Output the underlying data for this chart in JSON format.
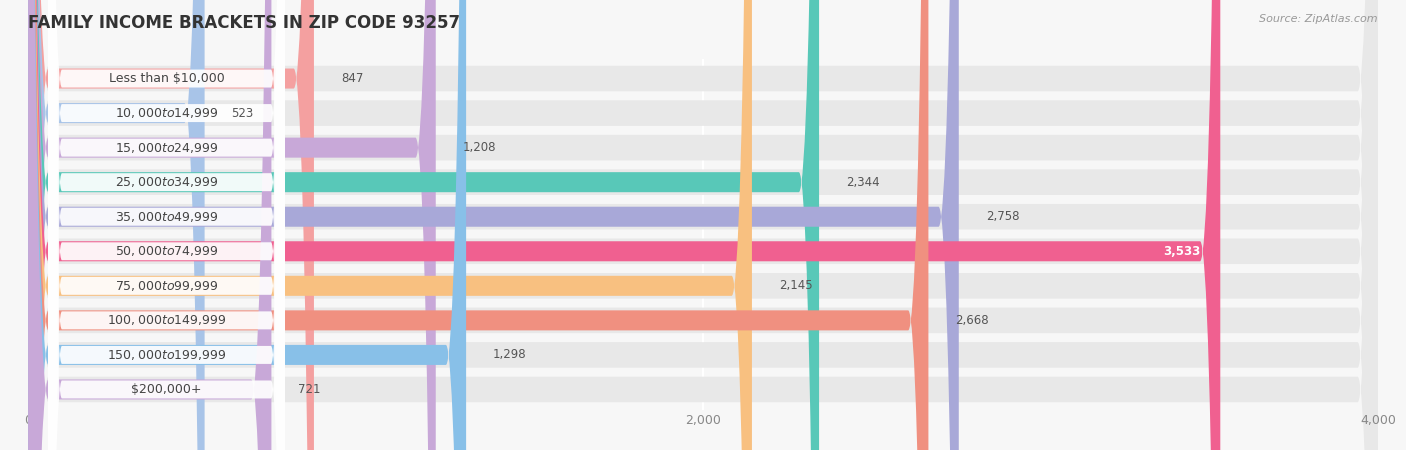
{
  "title": "FAMILY INCOME BRACKETS IN ZIP CODE 93257",
  "source": "Source: ZipAtlas.com",
  "categories": [
    "Less than $10,000",
    "$10,000 to $14,999",
    "$15,000 to $24,999",
    "$25,000 to $34,999",
    "$35,000 to $49,999",
    "$50,000 to $74,999",
    "$75,000 to $99,999",
    "$100,000 to $149,999",
    "$150,000 to $199,999",
    "$200,000+"
  ],
  "values": [
    847,
    523,
    1208,
    2344,
    2758,
    3533,
    2145,
    2668,
    1298,
    721
  ],
  "bar_colors": [
    "#F4A0A0",
    "#A8C4E8",
    "#C8A8D8",
    "#58C8B8",
    "#A8A8D8",
    "#F06090",
    "#F8C080",
    "#F09080",
    "#88C0E8",
    "#C8A8D8"
  ],
  "xlim": [
    0,
    4000
  ],
  "xticks": [
    0,
    2000,
    4000
  ],
  "background_color": "#f7f7f7",
  "bar_bg_color": "#e8e8e8",
  "title_fontsize": 12,
  "label_fontsize": 9,
  "value_fontsize": 8.5,
  "source_fontsize": 8
}
